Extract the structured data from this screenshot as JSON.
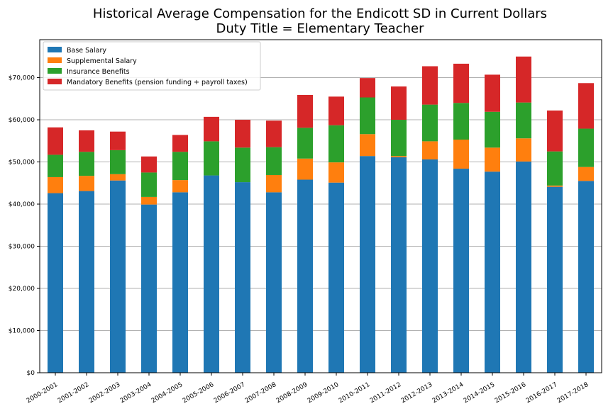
{
  "chart_data": {
    "type": "bar",
    "stacked": true,
    "title": "Historical Average Compensation for the Endicott SD in Current Dollars",
    "subtitle": "Duty Title = Elementary Teacher",
    "xlabel": "",
    "ylabel": "",
    "ylim": [
      0,
      79000
    ],
    "yticks": [
      0,
      10000,
      20000,
      30000,
      40000,
      50000,
      60000,
      70000
    ],
    "ytick_labels": [
      "$0",
      "$10,000",
      "$20,000",
      "$30,000",
      "$40,000",
      "$50,000",
      "$60,000",
      "$70,000"
    ],
    "grid": "horizontal",
    "legend_position": "top-left",
    "categories": [
      "2000-2001",
      "2001-2002",
      "2002-2003",
      "2003-2004",
      "2004-2005",
      "2005-2006",
      "2006-2007",
      "2007-2008",
      "2008-2009",
      "2009-2010",
      "2010-2011",
      "2011-2012",
      "2012-2013",
      "2013-2014",
      "2014-2015",
      "2015-2016",
      "2016-2017",
      "2017-2018"
    ],
    "series": [
      {
        "name": "Base Salary",
        "color": "#1f77b4",
        "values": [
          42600,
          43100,
          45600,
          39900,
          42800,
          46800,
          45200,
          42800,
          45800,
          45100,
          51400,
          51100,
          50600,
          48400,
          47700,
          50100,
          44100,
          45500
        ]
      },
      {
        "name": "Supplemental Salary",
        "color": "#ff7f0e",
        "values": [
          3800,
          3600,
          1500,
          1800,
          2900,
          0,
          0,
          4100,
          5000,
          4800,
          5200,
          300,
          4300,
          6900,
          5700,
          5500,
          300,
          3300
        ]
      },
      {
        "name": "Insurance Benefits",
        "color": "#2ca02c",
        "values": [
          5300,
          5700,
          5700,
          5800,
          6700,
          8100,
          8200,
          6600,
          7300,
          8800,
          8700,
          8600,
          8700,
          8700,
          8500,
          8500,
          8100,
          9100
        ]
      },
      {
        "name": "Mandatory Benefits (pension funding + payroll taxes)",
        "color": "#d62728",
        "values": [
          6500,
          5100,
          4400,
          3800,
          4000,
          5800,
          6600,
          6300,
          7800,
          6800,
          4600,
          7900,
          9100,
          9300,
          8800,
          10900,
          9700,
          10800
        ]
      }
    ]
  }
}
